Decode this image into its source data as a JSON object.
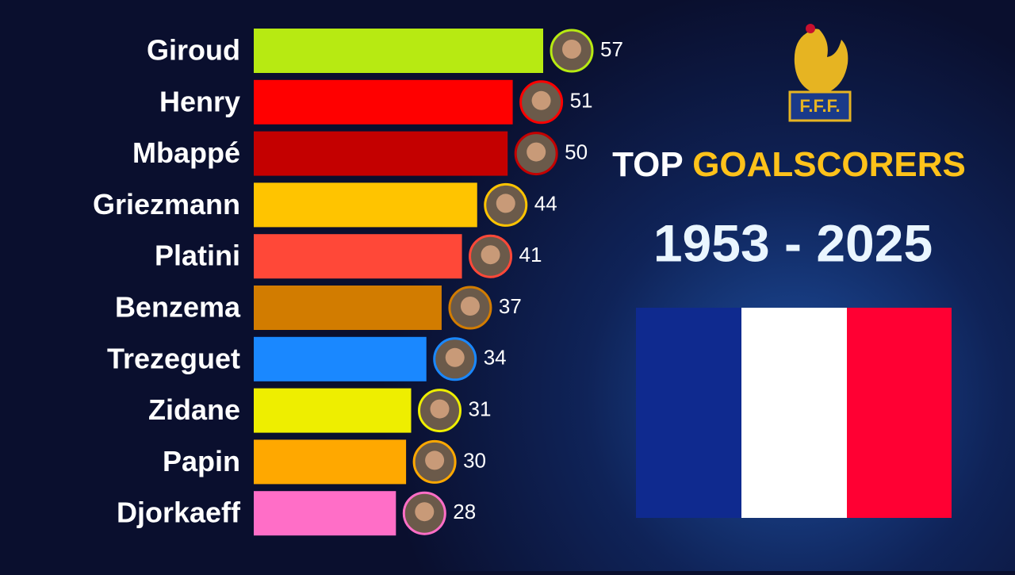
{
  "chart_data": {
    "type": "bar",
    "orientation": "horizontal",
    "title": {
      "lead": "TOP",
      "highlight": "GOALSCORERS"
    },
    "subtitle": "1953 - 2025",
    "logo_text": "F.F.F.",
    "categories": [
      "Giroud",
      "Henry",
      "Mbappé",
      "Griezmann",
      "Platini",
      "Benzema",
      "Trezeguet",
      "Zidane",
      "Papin",
      "Djorkaeff"
    ],
    "values": [
      57,
      51,
      50,
      44,
      41,
      37,
      34,
      31,
      30,
      28
    ],
    "colors": [
      "#b7ea12",
      "#ff0000",
      "#c40000",
      "#ffc400",
      "#ff4838",
      "#d27c00",
      "#1a88ff",
      "#eeee00",
      "#ffa800",
      "#ff6ec7"
    ]
  }
}
